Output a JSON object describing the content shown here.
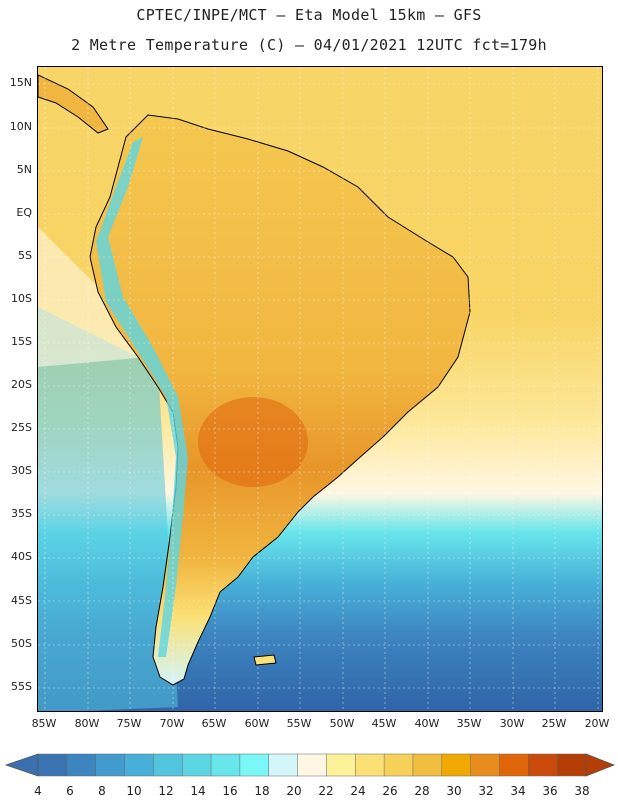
{
  "header": {
    "line1": "CPTEC/INPE/MCT –  Eta Model 15km – GFS",
    "line2": "2 Metre Temperature (C) – 04/01/2021 12UTC fct=179h"
  },
  "map": {
    "region": "South America",
    "variable": "2 Metre Temperature",
    "lat_labels": [
      "15N",
      "10N",
      "5N",
      "EQ",
      "5S",
      "10S",
      "15S",
      "20S",
      "25S",
      "30S",
      "35S",
      "40S",
      "45S",
      "50S",
      "55S"
    ],
    "lon_labels": [
      "85W",
      "80W",
      "75W",
      "70W",
      "65W",
      "60W",
      "55W",
      "50W",
      "45W",
      "40W",
      "35W",
      "30W",
      "25W",
      "20W"
    ]
  },
  "colorbar": {
    "labels": [
      "4",
      "6",
      "8",
      "10",
      "12",
      "14",
      "16",
      "18",
      "20",
      "22",
      "24",
      "26",
      "28",
      "30",
      "32",
      "34",
      "36",
      "38"
    ],
    "colors": [
      "#3a73b2",
      "#3d85c0",
      "#419bcc",
      "#47b0d8",
      "#52c4de",
      "#5dd6e4",
      "#69e6ec",
      "#7af7f6",
      "#d4f6fb",
      "#fff7e3",
      "#fbf29a",
      "#fbe075",
      "#f7d05a",
      "#f1be40",
      "#f1a800",
      "#e88d1d",
      "#e0660c",
      "#c94a0a",
      "#b43e06"
    ],
    "arrow_left_color": "#3a6fb0",
    "arrow_right_color": "#b43e06"
  }
}
